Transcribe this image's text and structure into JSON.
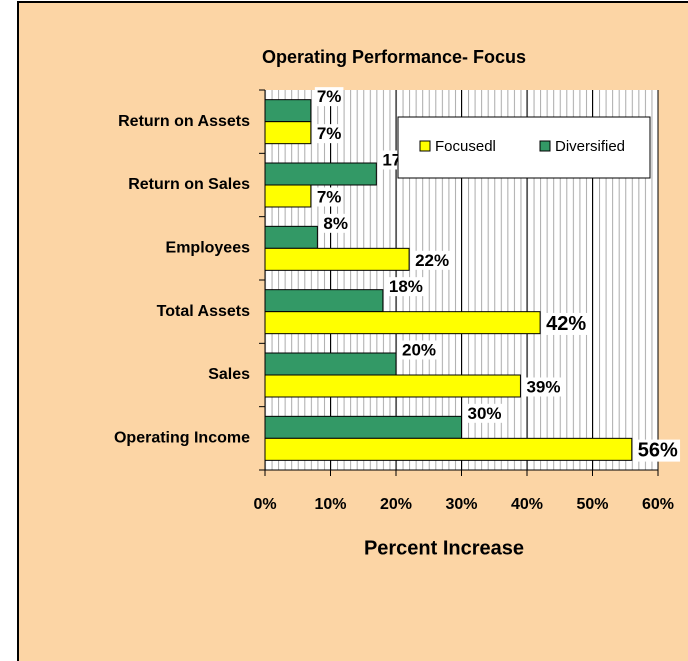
{
  "chart_data": {
    "type": "barh",
    "title": "Operating Performance- Focus",
    "x_label": "Percent Increase",
    "categories": [
      "Return on Assets",
      "Return on Sales",
      "Employees",
      "Total Assets",
      "Sales",
      "Operating Income"
    ],
    "series": [
      {
        "name": "Diversified",
        "color": "#339966",
        "values": [
          7,
          17,
          8,
          18,
          20,
          30
        ],
        "value_labels": [
          "7%",
          "17%",
          "8%",
          "18%",
          "20%",
          "30%"
        ]
      },
      {
        "name": "Focusedl",
        "color": "#ffff00",
        "values": [
          7,
          7,
          22,
          42,
          39,
          56
        ],
        "value_labels": [
          "7%",
          "7%",
          "22%",
          "42%",
          "39%",
          "56%"
        ]
      }
    ],
    "legend_order": [
      "Focusedl",
      "Diversified"
    ],
    "xlim": [
      0,
      60
    ],
    "xticks": [
      {
        "value": 0,
        "label": "0%"
      },
      {
        "value": 10,
        "label": "10%"
      },
      {
        "value": 20,
        "label": "20%"
      },
      {
        "value": 30,
        "label": "30%"
      },
      {
        "value": 40,
        "label": "40%"
      },
      {
        "value": 50,
        "label": "50%"
      },
      {
        "value": 60,
        "label": "60%"
      }
    ],
    "grid": true,
    "legend": "upper right"
  }
}
